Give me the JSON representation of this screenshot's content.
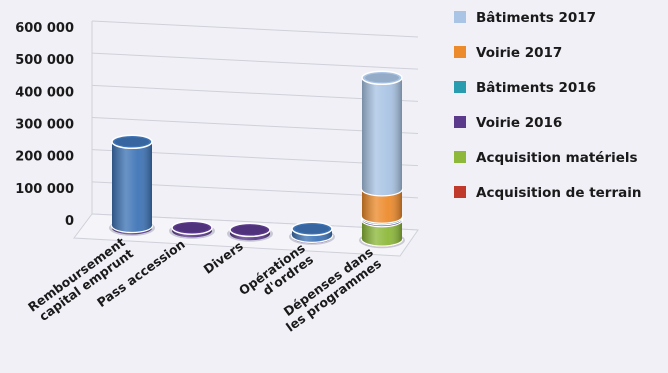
{
  "chart_data": {
    "type": "bar",
    "stacked": true,
    "three_d": true,
    "title": "",
    "xlabel": "",
    "ylabel": "",
    "ylim": [
      0,
      600000
    ],
    "y_ticks": [
      "600 000",
      "500 000",
      "400 000",
      "300 000",
      "200 000",
      "100 000",
      "0"
    ],
    "grid": true,
    "legend_position": "right",
    "categories": [
      [
        "Remboursement",
        "capital emprunt"
      ],
      [
        "Pass accession"
      ],
      [
        "Divers"
      ],
      [
        "Opérations",
        "d'ordres"
      ],
      [
        "Dépenses dans",
        "les programmes"
      ]
    ],
    "series": [
      {
        "name": "Acquisition de terrain",
        "color": "#c0392b",
        "values": [
          0,
          0,
          0,
          0,
          4000
        ]
      },
      {
        "name": "Acquisition matériels",
        "color": "#8db83a",
        "values": [
          0,
          0,
          0,
          0,
          60000
        ]
      },
      {
        "name": "Voirie 2016",
        "color": "#5b3a8c",
        "values": [
          8000,
          10000,
          12000,
          5000,
          6000
        ]
      },
      {
        "name": "Bâtiments 2016",
        "color": "#2a9cb0",
        "values": [
          0,
          0,
          0,
          0,
          5000
        ]
      },
      {
        "name": "Voirie 2017",
        "color": "#ec8b2c",
        "values": [
          0,
          0,
          0,
          0,
          85000
        ]
      },
      {
        "name": "Bâtiments 2017",
        "color": "#a9c4e4",
        "values": [
          0,
          0,
          0,
          0,
          345000
        ]
      },
      {
        "name": "Remboursement",
        "color": "#3e74b6",
        "values": [
          260000,
          0,
          0,
          20000,
          0
        ]
      }
    ],
    "legend_order": [
      "Bâtiments 2017",
      "Voirie 2017",
      "Bâtiments 2016",
      "Voirie 2016",
      "Acquisition matériels",
      "Acquisition de terrain"
    ]
  }
}
